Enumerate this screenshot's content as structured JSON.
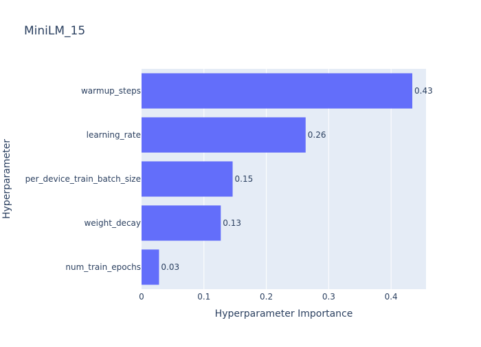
{
  "colors": {
    "bar": "#636efa",
    "plot_background": "#e5ecf6",
    "grid": "#ffffff",
    "text": "#2a3f5f"
  },
  "chart_data": {
    "type": "bar",
    "orientation": "horizontal",
    "title": "MiniLM_15",
    "xlabel": "Hyperparameter Importance",
    "ylabel": "Hyperparameter",
    "categories": [
      "warmup_steps",
      "learning_rate",
      "per_device_train_batch_size",
      "weight_decay",
      "num_train_epochs"
    ],
    "values": [
      0.434,
      0.263,
      0.146,
      0.127,
      0.028
    ],
    "data_labels": [
      "0.43",
      "0.26",
      "0.15",
      "0.13",
      "0.03"
    ],
    "xlim": [
      0,
      0.456
    ],
    "x_ticks": [
      0,
      0.1,
      0.2,
      0.3,
      0.4
    ],
    "x_tick_labels": [
      "0",
      "0.1",
      "0.2",
      "0.3",
      "0.4"
    ],
    "grid": true
  }
}
